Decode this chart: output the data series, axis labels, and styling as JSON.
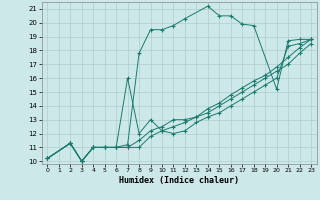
{
  "xlabel": "Humidex (Indice chaleur)",
  "background_color": "#cde8e8",
  "grid_color": "#b0cccc",
  "line_color": "#1a7a6e",
  "xlim": [
    -0.5,
    23.5
  ],
  "ylim": [
    9.8,
    21.5
  ],
  "yticks": [
    10,
    11,
    12,
    13,
    14,
    15,
    16,
    17,
    18,
    19,
    20,
    21
  ],
  "xticks": [
    0,
    1,
    2,
    3,
    4,
    5,
    6,
    7,
    8,
    9,
    10,
    11,
    12,
    13,
    14,
    15,
    16,
    17,
    18,
    19,
    20,
    21,
    22,
    23
  ],
  "series": [
    {
      "x": [
        0,
        2,
        3,
        4,
        5,
        6,
        7,
        8,
        9,
        10,
        11,
        12,
        14,
        15,
        16,
        17,
        18,
        20,
        21,
        22,
        23
      ],
      "y": [
        10.2,
        11.3,
        10.0,
        11.0,
        11.0,
        11.0,
        11.2,
        17.8,
        19.5,
        19.5,
        19.8,
        20.3,
        21.2,
        20.5,
        20.5,
        19.9,
        19.8,
        15.2,
        18.7,
        18.8,
        18.8
      ]
    },
    {
      "x": [
        0,
        2,
        3,
        4,
        5,
        6,
        7,
        8,
        9,
        10,
        11,
        12,
        13,
        14,
        15,
        16,
        17,
        18,
        19,
        20,
        21,
        22,
        23
      ],
      "y": [
        10.2,
        11.3,
        10.0,
        11.0,
        11.0,
        11.0,
        16.0,
        12.0,
        13.0,
        12.2,
        12.0,
        12.2,
        12.8,
        13.2,
        13.5,
        14.0,
        14.5,
        15.0,
        15.5,
        16.0,
        18.3,
        18.5,
        18.8
      ]
    },
    {
      "x": [
        0,
        2,
        3,
        4,
        5,
        6,
        7,
        8,
        9,
        10,
        11,
        12,
        13,
        14,
        15,
        16,
        17,
        18,
        19,
        20,
        21,
        22,
        23
      ],
      "y": [
        10.2,
        11.3,
        10.0,
        11.0,
        11.0,
        11.0,
        11.0,
        11.5,
        12.2,
        12.5,
        13.0,
        13.0,
        13.2,
        13.8,
        14.2,
        14.8,
        15.3,
        15.8,
        16.2,
        16.8,
        17.5,
        18.2,
        18.8
      ]
    },
    {
      "x": [
        0,
        2,
        3,
        4,
        5,
        6,
        7,
        8,
        9,
        10,
        11,
        12,
        13,
        14,
        15,
        16,
        17,
        18,
        19,
        20,
        21,
        22,
        23
      ],
      "y": [
        10.2,
        11.3,
        10.0,
        11.0,
        11.0,
        11.0,
        11.0,
        11.0,
        11.8,
        12.2,
        12.5,
        12.8,
        13.2,
        13.5,
        14.0,
        14.5,
        15.0,
        15.5,
        16.0,
        16.5,
        17.0,
        17.8,
        18.5
      ]
    }
  ]
}
